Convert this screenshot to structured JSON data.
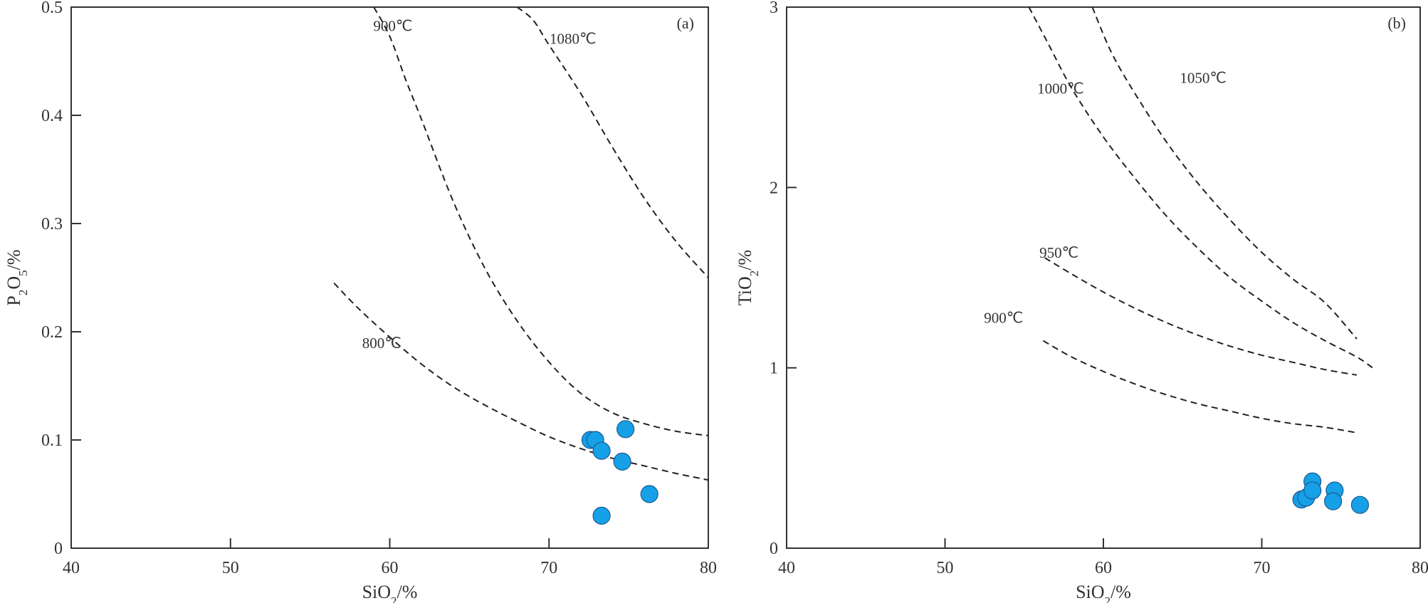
{
  "colors": {
    "point_fill": "#16A0E8",
    "axis": "#333333",
    "curve": "#222222"
  },
  "chart_data": [
    {
      "type": "scatter",
      "panel_label": "(a)",
      "xlabel": "SiO2/%",
      "ylabel": "P2O5/%",
      "xlim": [
        40,
        80
      ],
      "ylim": [
        0,
        0.5
      ],
      "x_ticks": [
        40,
        50,
        60,
        70,
        80
      ],
      "y_ticks": [
        0,
        0.1,
        0.2,
        0.3,
        0.4,
        0.5
      ],
      "y_tick_labels": [
        "0",
        "0.1",
        "0.2",
        "0.3",
        "0.4",
        "0.5"
      ],
      "grid": false,
      "points": [
        {
          "x": 72.6,
          "y": 0.1
        },
        {
          "x": 72.9,
          "y": 0.1
        },
        {
          "x": 73.3,
          "y": 0.09
        },
        {
          "x": 74.8,
          "y": 0.11
        },
        {
          "x": 74.6,
          "y": 0.08
        },
        {
          "x": 76.3,
          "y": 0.05
        },
        {
          "x": 73.3,
          "y": 0.03
        }
      ],
      "curves": [
        {
          "label": "800℃",
          "label_at": [
            59.5,
            0.185
          ],
          "points": [
            [
              56.5,
              0.245
            ],
            [
              58,
              0.222
            ],
            [
              60,
              0.195
            ],
            [
              62,
              0.17
            ],
            [
              64,
              0.149
            ],
            [
              66,
              0.132
            ],
            [
              68,
              0.117
            ],
            [
              70,
              0.103
            ],
            [
              72,
              0.092
            ],
            [
              74,
              0.083
            ],
            [
              76,
              0.076
            ],
            [
              78,
              0.069
            ],
            [
              80,
              0.063
            ]
          ]
        },
        {
          "label": "900℃",
          "label_at": [
            60.2,
            0.478
          ],
          "points": [
            [
              59,
              0.5
            ],
            [
              60,
              0.473
            ],
            [
              61,
              0.433
            ],
            [
              62,
              0.396
            ],
            [
              64,
              0.32
            ],
            [
              66,
              0.258
            ],
            [
              68,
              0.21
            ],
            [
              70,
              0.172
            ],
            [
              72,
              0.143
            ],
            [
              74,
              0.125
            ],
            [
              76,
              0.115
            ],
            [
              78,
              0.108
            ],
            [
              80,
              0.104
            ]
          ]
        },
        {
          "label": "1080℃",
          "label_at": [
            71.5,
            0.466
          ],
          "points": [
            [
              68,
              0.5
            ],
            [
              69,
              0.488
            ],
            [
              70,
              0.465
            ],
            [
              72,
              0.42
            ],
            [
              74,
              0.37
            ],
            [
              76,
              0.323
            ],
            [
              78,
              0.283
            ],
            [
              80,
              0.25
            ]
          ]
        }
      ]
    },
    {
      "type": "scatter",
      "panel_label": "(b)",
      "xlabel": "SiO2/%",
      "ylabel": "TiO2/%",
      "xlim": [
        40,
        80
      ],
      "ylim": [
        0,
        3
      ],
      "x_ticks": [
        40,
        50,
        60,
        70,
        80
      ],
      "y_ticks": [
        0,
        1,
        2,
        3
      ],
      "y_tick_labels": [
        "0",
        "1",
        "2",
        "3"
      ],
      "grid": false,
      "points": [
        {
          "x": 72.5,
          "y": 0.27
        },
        {
          "x": 72.8,
          "y": 0.28
        },
        {
          "x": 73.2,
          "y": 0.37
        },
        {
          "x": 73.2,
          "y": 0.32
        },
        {
          "x": 74.6,
          "y": 0.32
        },
        {
          "x": 74.5,
          "y": 0.26
        },
        {
          "x": 76.2,
          "y": 0.24
        }
      ],
      "curves": [
        {
          "label": "900℃",
          "label_at": [
            53.7,
            1.25
          ],
          "points": [
            [
              56.2,
              1.15
            ],
            [
              58,
              1.06
            ],
            [
              60,
              0.98
            ],
            [
              62,
              0.91
            ],
            [
              64,
              0.85
            ],
            [
              66,
              0.8
            ],
            [
              68,
              0.76
            ],
            [
              70,
              0.72
            ],
            [
              72,
              0.69
            ],
            [
              74,
              0.67
            ],
            [
              76,
              0.64
            ]
          ]
        },
        {
          "label": "950℃",
          "label_at": [
            57.2,
            1.61
          ],
          "points": [
            [
              56.3,
              1.61
            ],
            [
              58,
              1.52
            ],
            [
              60,
              1.42
            ],
            [
              62,
              1.33
            ],
            [
              64,
              1.25
            ],
            [
              66,
              1.18
            ],
            [
              68,
              1.12
            ],
            [
              70,
              1.07
            ],
            [
              72,
              1.03
            ],
            [
              74,
              0.99
            ],
            [
              76,
              0.96
            ]
          ]
        },
        {
          "label": "1000℃",
          "label_at": [
            57.3,
            2.52
          ],
          "points": [
            [
              55.3,
              3.0
            ],
            [
              56.5,
              2.8
            ],
            [
              58,
              2.55
            ],
            [
              60,
              2.28
            ],
            [
              62,
              2.05
            ],
            [
              64,
              1.84
            ],
            [
              66,
              1.66
            ],
            [
              68,
              1.5
            ],
            [
              70,
              1.37
            ],
            [
              72,
              1.25
            ],
            [
              74,
              1.15
            ],
            [
              76,
              1.06
            ],
            [
              77,
              1.0
            ]
          ]
        },
        {
          "label": "1050℃",
          "label_at": [
            66.3,
            2.58
          ],
          "points": [
            [
              59.3,
              3.0
            ],
            [
              60.5,
              2.75
            ],
            [
              62,
              2.52
            ],
            [
              64,
              2.25
            ],
            [
              66,
              2.02
            ],
            [
              68,
              1.82
            ],
            [
              70,
              1.64
            ],
            [
              72,
              1.49
            ],
            [
              74,
              1.36
            ],
            [
              76,
              1.16
            ]
          ]
        }
      ]
    }
  ]
}
